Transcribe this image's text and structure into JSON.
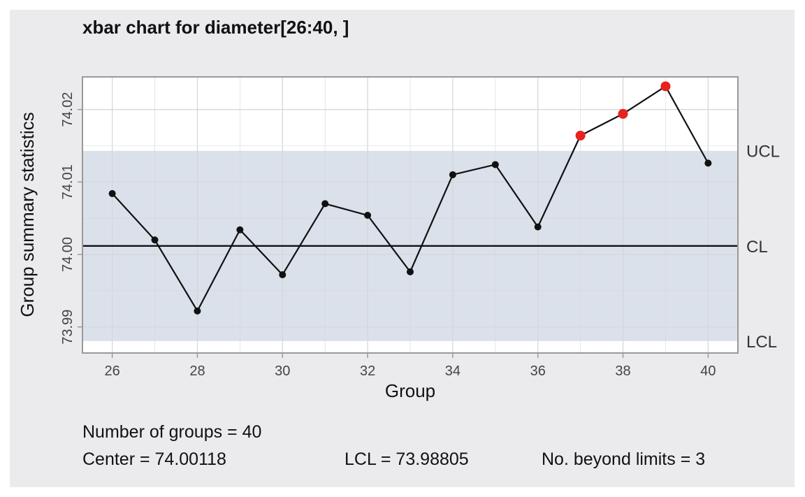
{
  "chart_data": {
    "type": "line",
    "title": "xbar chart for diameter[26:40, ]",
    "xlabel": "Group",
    "ylabel": "Group summary statistics",
    "xlim": [
      25.3,
      40.7
    ],
    "ylim": [
      73.9864,
      74.0245
    ],
    "xticks": [
      26,
      28,
      30,
      32,
      34,
      36,
      38,
      40
    ],
    "yticks": [
      73.99,
      74.0,
      74.01,
      74.02
    ],
    "ytick_labels": [
      "73.99",
      "74.00",
      "74.01",
      "74.02"
    ],
    "x": [
      26,
      27,
      28,
      29,
      30,
      31,
      32,
      33,
      34,
      35,
      36,
      37,
      38,
      39,
      40
    ],
    "values": [
      74.0084,
      74.002,
      73.9922,
      74.0034,
      73.9972,
      74.007,
      74.0054,
      73.9976,
      74.011,
      74.0124,
      74.0038,
      74.0164,
      74.0194,
      74.0232,
      74.0126
    ],
    "beyond_limits": [
      37,
      38,
      39
    ],
    "center": 74.00118,
    "ucl": 74.0143,
    "lcl": 73.98805,
    "limit_labels": {
      "ucl": "UCL",
      "cl": "CL",
      "lcl": "LCL"
    },
    "grid": true,
    "colors": {
      "panel_bg": "#ebebee",
      "plot_bg": "#ffffff",
      "band": "#dbe1ea",
      "grid": "#d5d5d8",
      "line": "#111111",
      "point": "#111111",
      "violation": "#e8221c",
      "border": "#999999"
    }
  },
  "stats": {
    "groups": "Number of groups = 40",
    "center": "Center = 74.00118",
    "lcl": "LCL = 73.98805",
    "beyond": "No. beyond limits = 3"
  }
}
